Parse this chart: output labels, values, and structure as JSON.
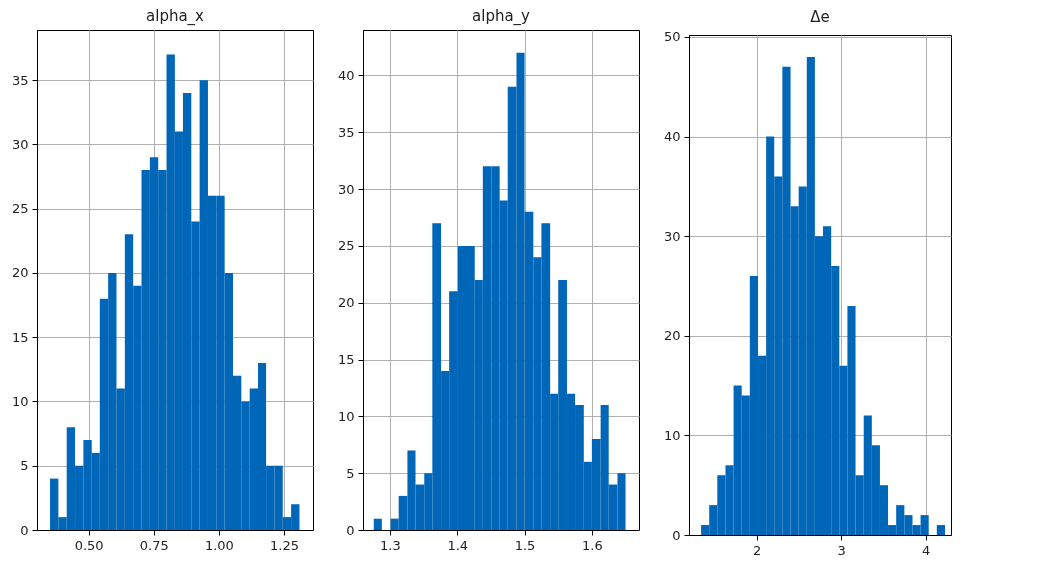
{
  "chart_data": [
    {
      "type": "histogram",
      "title": "alpha_x",
      "color": "#0066b8",
      "grid": true,
      "bins": [
        0.352,
        0.384,
        0.416,
        0.448,
        0.48,
        0.512,
        0.543,
        0.575,
        0.607,
        0.639,
        0.671,
        0.703,
        0.735,
        0.767,
        0.799,
        0.831,
        0.862,
        0.894,
        0.926,
        0.958,
        0.99,
        1.022,
        1.054,
        1.086,
        1.118,
        1.15,
        1.181,
        1.213,
        1.245,
        1.277,
        1.309
      ],
      "values": [
        4,
        1,
        8,
        5,
        7,
        6,
        18,
        20,
        11,
        23,
        19,
        28,
        29,
        28,
        37,
        31,
        34,
        24,
        35,
        26,
        26,
        20,
        12,
        10,
        11,
        13,
        5,
        5,
        1,
        2
      ],
      "xlim": [
        0.302,
        1.361
      ],
      "ylim": [
        0,
        38.9
      ],
      "xticks": [
        {
          "value": 0.5,
          "label": "0.50"
        },
        0.75,
        {
          "value": 1.0,
          "label": "1.00"
        },
        1.25
      ],
      "yticks": [
        0,
        5,
        10,
        15,
        20,
        25,
        30,
        35
      ]
    },
    {
      "type": "histogram",
      "title": "alpha_y",
      "color": "#0066b8",
      "grid": true,
      "bins": [
        1.276,
        1.288,
        1.301,
        1.313,
        1.326,
        1.338,
        1.351,
        1.363,
        1.376,
        1.388,
        1.401,
        1.413,
        1.426,
        1.438,
        1.451,
        1.463,
        1.475,
        1.488,
        1.5,
        1.513,
        1.525,
        1.538,
        1.55,
        1.563,
        1.575,
        1.588,
        1.6,
        1.613,
        1.625,
        1.638,
        1.65
      ],
      "values": [
        1,
        0,
        1,
        3,
        7,
        4,
        5,
        27,
        14,
        21,
        25,
        25,
        22,
        32,
        32,
        29,
        39,
        42,
        28,
        24,
        27,
        12,
        22,
        12,
        11,
        6,
        8,
        11,
        4,
        5
      ],
      "xlim": [
        1.26,
        1.67
      ],
      "ylim": [
        0,
        44
      ],
      "xticks": [
        1.3,
        1.4,
        1.5,
        1.6
      ],
      "yticks": [
        0,
        5,
        10,
        15,
        20,
        25,
        30,
        35,
        40
      ]
    },
    {
      "type": "histogram",
      "title": "Δe",
      "color": "#0066b8",
      "grid": true,
      "bins": [
        1.342,
        1.438,
        1.534,
        1.631,
        1.727,
        1.823,
        1.919,
        2.016,
        2.112,
        2.208,
        2.304,
        2.401,
        2.497,
        2.593,
        2.689,
        2.785,
        2.882,
        2.978,
        3.074,
        3.17,
        3.267,
        3.363,
        3.459,
        3.555,
        3.651,
        3.748,
        3.844,
        3.94,
        4.036,
        4.132,
        4.229
      ],
      "values": [
        1,
        3,
        6,
        7,
        15,
        14,
        26,
        18,
        40,
        36,
        47,
        33,
        35,
        48,
        30,
        31,
        27,
        17,
        23,
        6,
        12,
        9,
        5,
        1,
        3,
        2,
        1,
        2,
        0,
        1
      ],
      "xlim": [
        1.199,
        4.3
      ],
      "ylim": [
        0,
        50.2
      ],
      "xticks": [
        2,
        3,
        4
      ],
      "yticks": [
        0,
        10,
        20,
        30,
        40,
        50
      ]
    }
  ]
}
